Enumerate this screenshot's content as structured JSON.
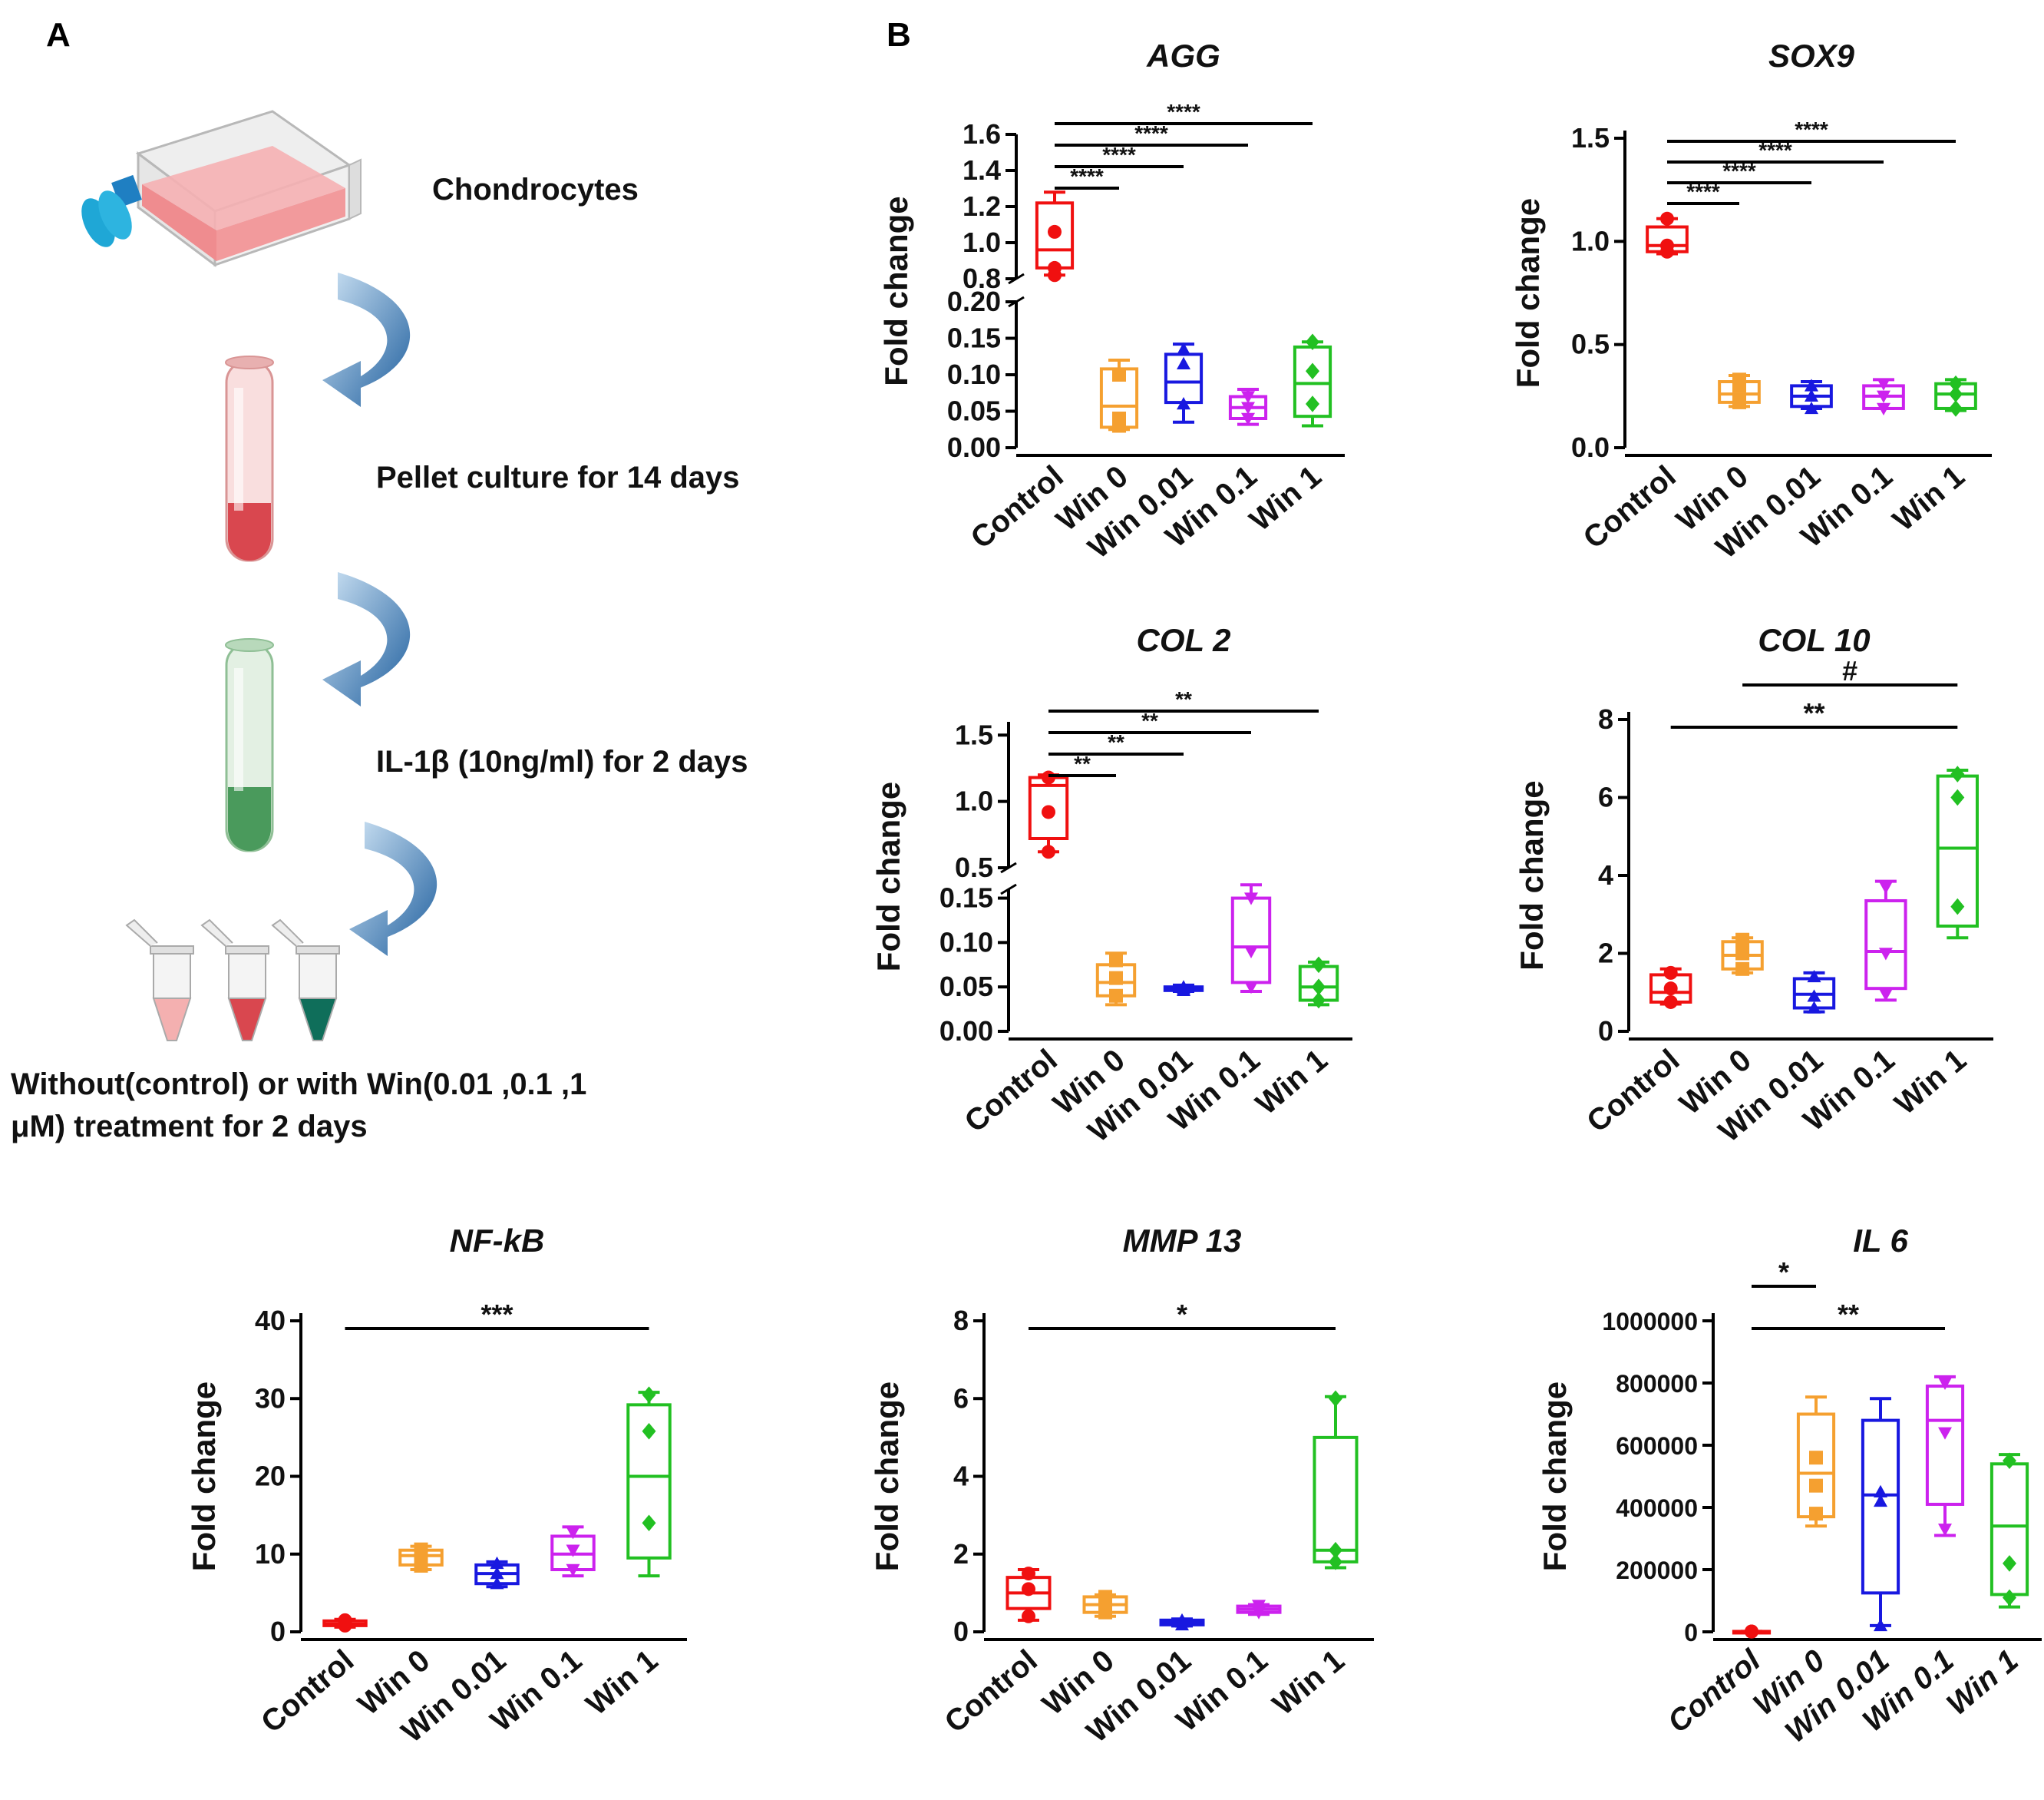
{
  "panels": {
    "a": "A",
    "b": "B"
  },
  "schematic": {
    "steps": [
      "Chondrocytes",
      "Pellet culture  for 14 days",
      "IL-1β (10ng/ml) for 2 days",
      "Without(control) or with Win(0.01 ,0.1 ,1",
      "μM)   treatment for 2 days"
    ],
    "colors": {
      "flask": "#ef8c8f",
      "cap": "#1fa7d6",
      "tube_red": "#d9474f",
      "tube_green": "#4a9a5c",
      "arrow": "#2b6ea8"
    }
  },
  "group_colors": [
    "#f01010",
    "#f5a030",
    "#1818e0",
    "#cc22ee",
    "#22c022"
  ],
  "chart_data": [
    {
      "type": "box",
      "title": "AGG",
      "ylabel": "Fold change",
      "categories": [
        "Control",
        "Win 0",
        "Win 0.01",
        "Win 0.1",
        "Win 1"
      ],
      "broken_axis": true,
      "upper_range": [
        0.8,
        1.6
      ],
      "upper_ticks": [
        "0.8",
        "1.0",
        "1.2",
        "1.4",
        "1.6"
      ],
      "lower_range": [
        0,
        0.2
      ],
      "lower_ticks": [
        "0.00",
        "0.05",
        "0.10",
        "0.15",
        "0.20"
      ],
      "boxes": [
        {
          "min": 0.82,
          "q1": 0.86,
          "median": 0.96,
          "q3": 1.22,
          "max": 1.28,
          "points": [
            0.82,
            0.86,
            1.06
          ]
        },
        {
          "min": 0.025,
          "q1": 0.028,
          "median": 0.057,
          "q3": 0.108,
          "max": 0.12,
          "points": [
            0.03,
            0.04,
            0.1
          ]
        },
        {
          "min": 0.035,
          "q1": 0.062,
          "median": 0.09,
          "q3": 0.128,
          "max": 0.142,
          "points": [
            0.06,
            0.115,
            0.135
          ]
        },
        {
          "min": 0.032,
          "q1": 0.04,
          "median": 0.055,
          "q3": 0.07,
          "max": 0.08,
          "points": [
            0.04,
            0.055,
            0.07
          ]
        },
        {
          "min": 0.03,
          "q1": 0.043,
          "median": 0.088,
          "q3": 0.138,
          "max": 0.145,
          "points": [
            0.06,
            0.105,
            0.145
          ]
        }
      ],
      "annotations": [
        {
          "from": 0,
          "to": 1,
          "label": "****"
        },
        {
          "from": 0,
          "to": 2,
          "label": "****"
        },
        {
          "from": 0,
          "to": 3,
          "label": "****"
        },
        {
          "from": 0,
          "to": 4,
          "label": "****"
        }
      ]
    },
    {
      "type": "box",
      "title": "SOX9",
      "ylabel": "Fold change",
      "categories": [
        "Control",
        "Win 0",
        "Win 0.01",
        "Win 0.1",
        "Win 1"
      ],
      "ylim": [
        0,
        1.5
      ],
      "ticks": [
        "0.0",
        "0.5",
        "1.0",
        "1.5"
      ],
      "tick_values": [
        0,
        0.5,
        1.0,
        1.5
      ],
      "boxes": [
        {
          "min": 0.94,
          "q1": 0.95,
          "median": 0.98,
          "q3": 1.07,
          "max": 1.11,
          "points": [
            0.95,
            0.98,
            1.11
          ]
        },
        {
          "min": 0.2,
          "q1": 0.22,
          "median": 0.26,
          "q3": 0.32,
          "max": 0.35,
          "points": [
            0.22,
            0.3,
            0.33
          ]
        },
        {
          "min": 0.19,
          "q1": 0.2,
          "median": 0.25,
          "q3": 0.3,
          "max": 0.32,
          "points": [
            0.19,
            0.25,
            0.3
          ]
        },
        {
          "min": 0.19,
          "q1": 0.19,
          "median": 0.25,
          "q3": 0.3,
          "max": 0.33,
          "points": [
            0.19,
            0.25,
            0.31
          ]
        },
        {
          "min": 0.18,
          "q1": 0.19,
          "median": 0.26,
          "q3": 0.31,
          "max": 0.33,
          "points": [
            0.19,
            0.26,
            0.31
          ]
        }
      ],
      "annotations": [
        {
          "from": 0,
          "to": 1,
          "label": "****"
        },
        {
          "from": 0,
          "to": 2,
          "label": "****"
        },
        {
          "from": 0,
          "to": 3,
          "label": "****"
        },
        {
          "from": 0,
          "to": 4,
          "label": "****"
        }
      ]
    },
    {
      "type": "box",
      "title": "COL 2",
      "ylabel": "Fold change",
      "categories": [
        "Control",
        "Win 0",
        "Win 0.01",
        "Win 0.1",
        "Win 1"
      ],
      "broken_axis": true,
      "upper_range": [
        0.5,
        1.6
      ],
      "upper_ticks": [
        "0.5",
        "1.0",
        "1.5"
      ],
      "upper_tick_values": [
        0.5,
        1.0,
        1.5
      ],
      "lower_range": [
        0,
        0.16
      ],
      "lower_ticks": [
        "0.00",
        "0.05",
        "0.10",
        "0.15"
      ],
      "lower_tick_values": [
        0,
        0.05,
        0.1,
        0.15
      ],
      "boxes": [
        {
          "min": 0.62,
          "q1": 0.72,
          "median": 1.12,
          "q3": 1.18,
          "max": 1.2,
          "points": [
            0.62,
            0.92,
            1.18
          ]
        },
        {
          "min": 0.03,
          "q1": 0.04,
          "median": 0.055,
          "q3": 0.075,
          "max": 0.088,
          "points": [
            0.04,
            0.06,
            0.08
          ]
        },
        {
          "min": 0.045,
          "q1": 0.046,
          "median": 0.048,
          "q3": 0.05,
          "max": 0.052,
          "points": [
            0.046,
            0.048,
            0.05
          ]
        },
        {
          "min": 0.045,
          "q1": 0.055,
          "median": 0.095,
          "q3": 0.15,
          "max": 0.165,
          "points": [
            0.05,
            0.09,
            0.15
          ]
        },
        {
          "min": 0.03,
          "q1": 0.035,
          "median": 0.05,
          "q3": 0.073,
          "max": 0.078,
          "points": [
            0.035,
            0.05,
            0.075
          ]
        }
      ],
      "annotations": [
        {
          "from": 0,
          "to": 1,
          "label": "**"
        },
        {
          "from": 0,
          "to": 2,
          "label": "**"
        },
        {
          "from": 0,
          "to": 3,
          "label": "**"
        },
        {
          "from": 0,
          "to": 4,
          "label": "**"
        }
      ]
    },
    {
      "type": "box",
      "title": "COL 10",
      "ylabel": "Fold change",
      "categories": [
        "Control",
        "Win 0",
        "Win 0.01",
        "Win 0.1",
        "Win 1"
      ],
      "ylim": [
        0,
        8
      ],
      "ticks": [
        "0",
        "2",
        "4",
        "6",
        "8"
      ],
      "tick_values": [
        0,
        2,
        4,
        6,
        8
      ],
      "boxes": [
        {
          "min": 0.7,
          "q1": 0.75,
          "median": 1.0,
          "q3": 1.45,
          "max": 1.6,
          "points": [
            0.75,
            1.1,
            1.5
          ]
        },
        {
          "min": 1.5,
          "q1": 1.6,
          "median": 1.95,
          "q3": 2.3,
          "max": 2.4,
          "points": [
            1.6,
            2.0,
            2.35
          ]
        },
        {
          "min": 0.5,
          "q1": 0.6,
          "median": 0.95,
          "q3": 1.35,
          "max": 1.5,
          "points": [
            0.6,
            0.9,
            1.4
          ]
        },
        {
          "min": 0.8,
          "q1": 1.1,
          "median": 2.05,
          "q3": 3.35,
          "max": 3.85,
          "points": [
            0.95,
            2.0,
            3.7
          ]
        },
        {
          "min": 2.4,
          "q1": 2.7,
          "median": 4.7,
          "q3": 6.55,
          "max": 6.7,
          "points": [
            3.2,
            6.0,
            6.6
          ]
        }
      ],
      "annotations": [
        {
          "from": 0,
          "to": 4,
          "label": "**"
        },
        {
          "from": 1,
          "to": 4,
          "label": "#"
        }
      ]
    },
    {
      "type": "box",
      "title": "NF-kB",
      "ylabel": "Fold change",
      "categories": [
        "Control",
        "Win 0",
        "Win 0.01",
        "Win 0.1",
        "Win 1"
      ],
      "ylim": [
        0,
        40
      ],
      "ticks": [
        "0",
        "10",
        "20",
        "30",
        "40"
      ],
      "tick_values": [
        0,
        10,
        20,
        30,
        40
      ],
      "boxes": [
        {
          "min": 0.6,
          "q1": 0.8,
          "median": 1.0,
          "q3": 1.4,
          "max": 1.6,
          "points": [
            0.8,
            1.1,
            1.5
          ]
        },
        {
          "min": 8.0,
          "q1": 8.6,
          "median": 9.8,
          "q3": 10.5,
          "max": 11.0,
          "points": [
            8.5,
            9.8,
            10.6
          ]
        },
        {
          "min": 5.8,
          "q1": 6.2,
          "median": 7.5,
          "q3": 8.6,
          "max": 9.0,
          "points": [
            6.2,
            7.5,
            8.8
          ]
        },
        {
          "min": 7.2,
          "q1": 8.0,
          "median": 10.0,
          "q3": 12.3,
          "max": 13.5,
          "points": [
            8.0,
            10.5,
            12.8
          ]
        },
        {
          "min": 7.2,
          "q1": 9.5,
          "median": 20.0,
          "q3": 29.2,
          "max": 30.8,
          "points": [
            14.0,
            25.8,
            30.5
          ]
        }
      ],
      "annotations": [
        {
          "from": 0,
          "to": 4,
          "label": "***"
        }
      ]
    },
    {
      "type": "box",
      "title": "MMP 13",
      "ylabel": "Fold change",
      "categories": [
        "Control",
        "Win 0",
        "Win 0.01",
        "Win 0.1",
        "Win 1"
      ],
      "ylim": [
        0,
        8
      ],
      "ticks": [
        "0",
        "2",
        "4",
        "6",
        "8"
      ],
      "tick_values": [
        0,
        2,
        4,
        6,
        8
      ],
      "boxes": [
        {
          "min": 0.3,
          "q1": 0.6,
          "median": 1.0,
          "q3": 1.4,
          "max": 1.6,
          "points": [
            0.4,
            1.1,
            1.5
          ]
        },
        {
          "min": 0.4,
          "q1": 0.5,
          "median": 0.7,
          "q3": 0.9,
          "max": 0.95,
          "points": [
            0.5,
            0.7,
            0.9
          ]
        },
        {
          "min": 0.15,
          "q1": 0.18,
          "median": 0.25,
          "q3": 0.3,
          "max": 0.33,
          "points": [
            0.18,
            0.25,
            0.3
          ]
        },
        {
          "min": 0.45,
          "q1": 0.5,
          "median": 0.58,
          "q3": 0.66,
          "max": 0.7,
          "points": [
            0.5,
            0.58,
            0.68
          ]
        },
        {
          "min": 1.65,
          "q1": 1.8,
          "median": 2.1,
          "q3": 5.0,
          "max": 6.05,
          "points": [
            1.8,
            2.1,
            6.0
          ]
        }
      ],
      "annotations": [
        {
          "from": 0,
          "to": 4,
          "label": "*"
        }
      ]
    },
    {
      "type": "box",
      "title": "IL 6",
      "ylabel": "Fold change",
      "categories": [
        "Control",
        "Win 0",
        "Win 0.01",
        "Win 0.1",
        "Win 1"
      ],
      "ylim": [
        0,
        1000000
      ],
      "ticks": [
        "0",
        "200000",
        "400000",
        "600000",
        "800000",
        "1000000"
      ],
      "tick_values": [
        0,
        200000,
        400000,
        600000,
        800000,
        1000000
      ],
      "boxes": [
        {
          "min": 500,
          "q1": 700,
          "median": 1000,
          "q3": 1300,
          "max": 1500,
          "points": [
            700,
            1000,
            1300
          ]
        },
        {
          "min": 340000,
          "q1": 370000,
          "median": 510000,
          "q3": 700000,
          "max": 755000,
          "points": [
            380000,
            470000,
            560000
          ]
        },
        {
          "min": 20000,
          "q1": 125000,
          "median": 440000,
          "q3": 680000,
          "max": 750000,
          "points": [
            20000,
            420000,
            450000
          ]
        },
        {
          "min": 310000,
          "q1": 410000,
          "median": 680000,
          "q3": 790000,
          "max": 820000,
          "points": [
            330000,
            640000,
            800000
          ]
        },
        {
          "min": 80000,
          "q1": 120000,
          "median": 340000,
          "q3": 540000,
          "max": 570000,
          "points": [
            110000,
            220000,
            550000
          ]
        }
      ],
      "annotations": [
        {
          "from": 0,
          "to": 1,
          "label": "*"
        },
        {
          "from": 0,
          "to": 3,
          "label": "**"
        }
      ]
    }
  ]
}
